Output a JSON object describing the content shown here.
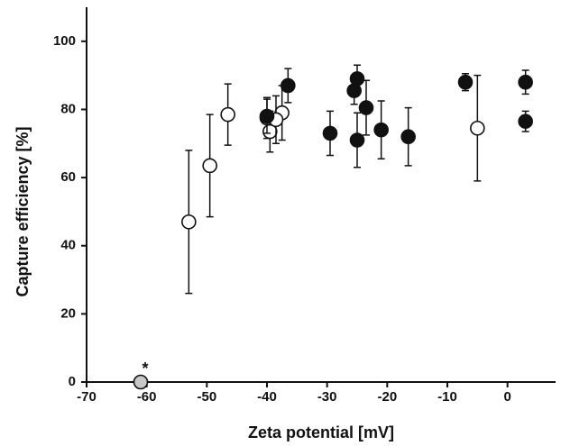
{
  "chart_data": {
    "type": "scatter",
    "x_label": "Zeta potential [mV]",
    "y_label": "Capture efficiency [%]",
    "xlim": [
      -70,
      8
    ],
    "ylim": [
      0,
      110
    ],
    "xticks": [
      -70,
      -60,
      -50,
      -40,
      -30,
      -20,
      -10,
      0
    ],
    "yticks": [
      0,
      20,
      40,
      60,
      80,
      100
    ],
    "series": [
      {
        "color": "#ffffff",
        "x": [
          -53,
          -49.5,
          -46.5,
          -40,
          -39.5,
          -37.5,
          -38.5,
          -5
        ],
        "values": [
          47,
          63.5,
          78.5,
          77.5,
          73.5,
          79,
          77,
          74.5
        ],
        "errors": [
          21,
          15,
          9,
          6,
          6,
          8,
          7,
          15.5
        ]
      },
      {
        "color": "#111111",
        "x": [
          -40,
          -36.5,
          -29.5,
          -25.5,
          -25,
          -25,
          -23.5,
          -21,
          -16.5,
          -7,
          3,
          3
        ],
        "values": [
          78,
          87,
          73,
          85.5,
          89,
          71,
          80.5,
          74,
          72,
          88,
          88,
          76.5
        ],
        "errors": [
          5,
          5,
          6.5,
          4,
          4,
          8,
          8,
          8.5,
          8.5,
          2.5,
          3.5,
          3
        ]
      },
      {
        "color": "#c8c8c8",
        "annotation": "*",
        "x": [
          -61
        ],
        "values": [
          0
        ],
        "errors": [
          0
        ]
      }
    ]
  }
}
